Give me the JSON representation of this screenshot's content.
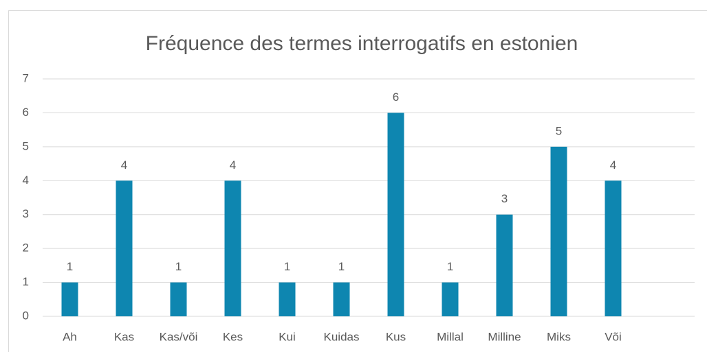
{
  "chart_data": {
    "type": "bar",
    "title": "Fréquence des termes interrogatifs en estonien",
    "categories": [
      "Ah",
      "Kas",
      "Kas/või",
      "Kes",
      "Kui",
      "Kuidas",
      "Kus",
      "Millal",
      "Milline",
      "Miks",
      "Või",
      null
    ],
    "values": [
      1,
      4,
      1,
      4,
      1,
      1,
      6,
      1,
      3,
      5,
      4,
      null
    ],
    "color": "#0e86b0",
    "ylim": [
      0,
      7
    ],
    "yticks": [
      0,
      1,
      2,
      3,
      4,
      5,
      6,
      7
    ],
    "grid": true,
    "data_labels": true
  }
}
